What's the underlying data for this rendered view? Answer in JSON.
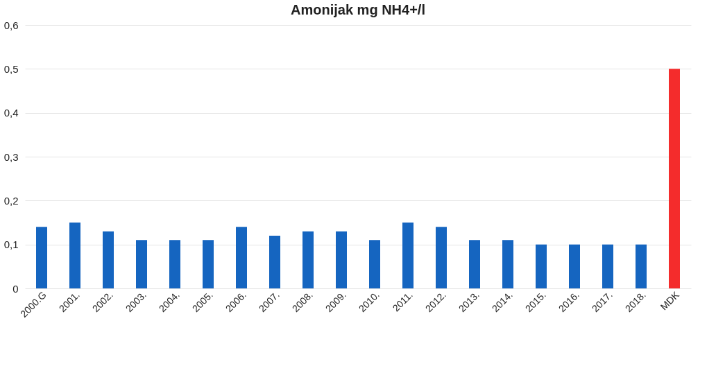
{
  "chart_data": {
    "type": "bar",
    "title": "Amonijak mg NH4+/l",
    "categories": [
      "2000.G",
      "2001.",
      "2002.",
      "2003.",
      "2004.",
      "2005.",
      "2006.",
      "2007.",
      "2008.",
      "2009.",
      "2010.",
      "2011.",
      "2012.",
      "2013.",
      "2014.",
      "2015.",
      "2016.",
      "2017.",
      "2018.",
      "MDK"
    ],
    "values": [
      0.14,
      0.15,
      0.13,
      0.11,
      0.11,
      0.11,
      0.14,
      0.12,
      0.13,
      0.13,
      0.11,
      0.15,
      0.14,
      0.11,
      0.11,
      0.1,
      0.1,
      0.1,
      0.1,
      0.5
    ],
    "colors": [
      "#1565c0",
      "#1565c0",
      "#1565c0",
      "#1565c0",
      "#1565c0",
      "#1565c0",
      "#1565c0",
      "#1565c0",
      "#1565c0",
      "#1565c0",
      "#1565c0",
      "#1565c0",
      "#1565c0",
      "#1565c0",
      "#1565c0",
      "#1565c0",
      "#1565c0",
      "#1565c0",
      "#1565c0",
      "#f42c2c"
    ],
    "ylim": [
      0,
      0.6
    ],
    "yticks": [
      0,
      {
        "value": 0.1,
        "label": "0,1"
      },
      {
        "value": 0.2,
        "label": "0,2"
      },
      {
        "value": 0.3,
        "label": "0,3"
      },
      {
        "value": 0.4,
        "label": "0,4"
      },
      {
        "value": 0.5,
        "label": "0,5"
      },
      {
        "value": 0.6,
        "label": "0,6"
      }
    ],
    "grid": "y"
  }
}
